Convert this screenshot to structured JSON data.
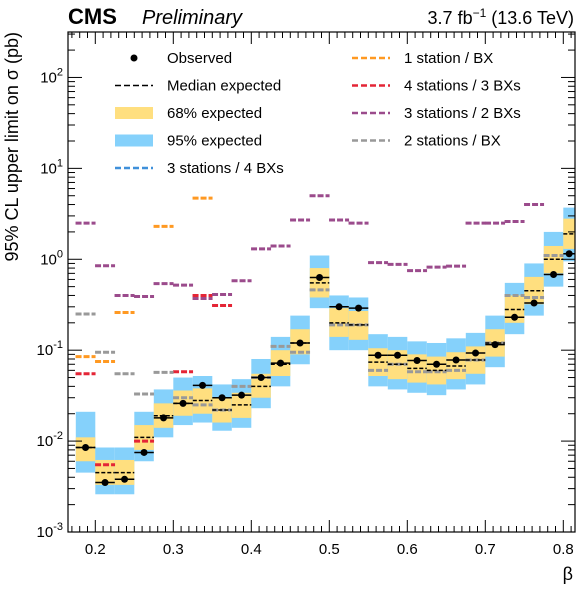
{
  "header": {
    "experiment": "CMS",
    "status": "Preliminary",
    "lumi_prefix": "3.7 fb",
    "lumi_exp": "−1",
    "lumi_suffix": " (13.6 TeV)"
  },
  "chart_data": {
    "type": "scatter",
    "xlabel": "β",
    "ylabel": "95% CL upper limit on σ (pb)",
    "xlim": [
      0.165,
      0.815
    ],
    "ylim_log10": [
      -3,
      2.5
    ],
    "yscale": "log",
    "x_ticks": [
      "0.2",
      "0.3",
      "0.4",
      "0.5",
      "0.6",
      "0.7",
      "0.8"
    ],
    "y_ticks": [
      {
        "base": "10",
        "exp": "-3"
      },
      {
        "base": "10",
        "exp": "-2"
      },
      {
        "base": "10",
        "exp": "-1"
      },
      {
        "base": "10",
        "exp": "0"
      },
      {
        "base": "10",
        "exp": "1"
      },
      {
        "base": "10",
        "exp": "2"
      }
    ],
    "bin_edges": [
      0.175,
      0.2,
      0.225,
      0.25,
      0.275,
      0.3,
      0.325,
      0.35,
      0.375,
      0.4,
      0.425,
      0.45,
      0.475,
      0.5,
      0.525,
      0.55,
      0.575,
      0.6,
      0.625,
      0.65,
      0.675,
      0.7,
      0.725,
      0.75,
      0.775,
      0.8
    ],
    "observed": [
      0.0085,
      0.0035,
      0.0038,
      0.0075,
      0.018,
      0.026,
      0.041,
      0.03,
      0.032,
      0.05,
      0.072,
      0.12,
      0.63,
      0.3,
      0.29,
      0.088,
      0.088,
      0.077,
      0.07,
      0.078,
      0.093,
      0.115,
      0.23,
      0.33,
      0.68
    ],
    "observed_extra": [
      1.15
    ],
    "median_expected": [
      0.0085,
      0.0045,
      0.0045,
      0.011,
      0.019,
      0.026,
      0.028,
      0.022,
      0.025,
      0.04,
      0.07,
      0.12,
      0.55,
      0.2,
      0.19,
      0.074,
      0.07,
      0.063,
      0.06,
      0.067,
      0.078,
      0.12,
      0.28,
      0.45,
      1.0
    ],
    "median_expected_extra": [
      1.9
    ],
    "band68": {
      "low": [
        0.006,
        0.0033,
        0.0033,
        0.008,
        0.014,
        0.019,
        0.02,
        0.016,
        0.018,
        0.03,
        0.052,
        0.09,
        0.38,
        0.14,
        0.13,
        0.052,
        0.048,
        0.044,
        0.042,
        0.048,
        0.055,
        0.085,
        0.2,
        0.32,
        0.7
      ],
      "high": [
        0.011,
        0.0062,
        0.0062,
        0.015,
        0.026,
        0.036,
        0.038,
        0.03,
        0.034,
        0.055,
        0.1,
        0.17,
        0.8,
        0.29,
        0.27,
        0.105,
        0.1,
        0.09,
        0.085,
        0.095,
        0.11,
        0.17,
        0.4,
        0.64,
        1.4
      ]
    },
    "band68_extra": {
      "low": [
        1.3
      ],
      "high": [
        2.8
      ]
    },
    "band95": {
      "low": [
        0.0045,
        0.0026,
        0.0026,
        0.006,
        0.011,
        0.015,
        0.016,
        0.013,
        0.014,
        0.023,
        0.04,
        0.07,
        0.29,
        0.1,
        0.1,
        0.04,
        0.037,
        0.034,
        0.032,
        0.037,
        0.042,
        0.065,
        0.15,
        0.24,
        0.5
      ],
      "high": [
        0.021,
        0.0085,
        0.0085,
        0.021,
        0.037,
        0.05,
        0.052,
        0.042,
        0.048,
        0.08,
        0.14,
        0.24,
        1.1,
        0.4,
        0.38,
        0.15,
        0.14,
        0.125,
        0.12,
        0.135,
        0.155,
        0.24,
        0.55,
        0.9,
        2.0
      ]
    },
    "band95_extra": {
      "low": [
        0.95
      ],
      "high": [
        3.7
      ]
    },
    "series_lines": [
      {
        "name": "1 station / BX",
        "color": "#ff9922",
        "points": [
          [
            0.1875,
            0.085
          ],
          [
            0.2125,
            0.075
          ],
          [
            0.2375,
            0.26
          ],
          [
            0.2875,
            2.3
          ],
          [
            0.3375,
            4.7
          ]
        ]
      },
      {
        "name": "4 stations / 3 BXs",
        "color": "#e42536",
        "points": [
          [
            0.1875,
            0.055
          ],
          [
            0.2125,
            0.0055
          ],
          [
            0.2625,
            0.01
          ],
          [
            0.3125,
            0.058
          ],
          [
            0.3375,
            0.4
          ],
          [
            0.3625,
            0.31
          ]
        ]
      },
      {
        "name": "3 stations / 2 BXs",
        "color": "#9b4b8c",
        "points": [
          [
            0.1875,
            2.5
          ],
          [
            0.2125,
            0.85
          ],
          [
            0.2375,
            0.4
          ],
          [
            0.2625,
            0.39
          ],
          [
            0.2875,
            0.54
          ],
          [
            0.3125,
            0.52
          ],
          [
            0.3375,
            0.37
          ],
          [
            0.3625,
            0.41
          ],
          [
            0.3875,
            0.58
          ],
          [
            0.4125,
            1.3
          ],
          [
            0.4375,
            1.4
          ],
          [
            0.4625,
            2.7
          ],
          [
            0.4875,
            5.0
          ],
          [
            0.5125,
            2.7
          ],
          [
            0.5375,
            2.5
          ],
          [
            0.5625,
            0.92
          ],
          [
            0.5875,
            0.88
          ],
          [
            0.6125,
            0.75
          ],
          [
            0.6375,
            0.82
          ],
          [
            0.6625,
            0.84
          ],
          [
            0.6875,
            2.5
          ],
          [
            0.7125,
            2.5
          ],
          [
            0.7375,
            2.6
          ],
          [
            0.7625,
            4.0
          ]
        ]
      },
      {
        "name": "2 stations / BX",
        "color": "#999999",
        "points": [
          [
            0.1875,
            0.25
          ],
          [
            0.2125,
            0.095
          ],
          [
            0.2375,
            0.055
          ],
          [
            0.2625,
            0.033
          ],
          [
            0.2875,
            0.057
          ],
          [
            0.3125,
            0.03
          ],
          [
            0.3375,
            0.025
          ],
          [
            0.3625,
            0.022
          ],
          [
            0.3875,
            0.04
          ],
          [
            0.4125,
            0.05
          ],
          [
            0.4375,
            0.11
          ],
          [
            0.4625,
            0.095
          ],
          [
            0.4875,
            0.46
          ],
          [
            0.5125,
            0.19
          ],
          [
            0.5375,
            0.19
          ],
          [
            0.5625,
            0.06
          ],
          [
            0.5875,
            0.07
          ],
          [
            0.6125,
            0.058
          ],
          [
            0.6375,
            0.058
          ],
          [
            0.6625,
            0.06
          ],
          [
            0.6875,
            0.078
          ],
          [
            0.7125,
            0.12
          ],
          [
            0.7375,
            0.4
          ],
          [
            0.7625,
            0.38
          ],
          [
            0.7875,
            1.1
          ]
        ]
      },
      {
        "name": "3 stations / 4 BXs",
        "color": "#3f90da",
        "points": []
      }
    ],
    "legend": {
      "placement": "top",
      "left_column": [
        {
          "label": "Observed",
          "kind": "dot"
        },
        {
          "label": "Median expected",
          "kind": "dash",
          "color": "#000000"
        },
        {
          "label": "68% expected",
          "kind": "band",
          "color": "#ffdf7f"
        },
        {
          "label": "95% expected",
          "kind": "band",
          "color": "#85d1fb"
        },
        {
          "label": "3 stations / 4 BXs",
          "kind": "dash",
          "color": "#3f90da"
        }
      ],
      "right_column": [
        {
          "label": "1 station / BX",
          "kind": "dash",
          "color": "#ff9922"
        },
        {
          "label": "4 stations / 3 BXs",
          "kind": "dash",
          "color": "#e42536"
        },
        {
          "label": "3 stations / 2 BXs",
          "kind": "dash",
          "color": "#9b4b8c"
        },
        {
          "label": "2 stations / BX",
          "kind": "dash",
          "color": "#999999"
        }
      ]
    }
  }
}
